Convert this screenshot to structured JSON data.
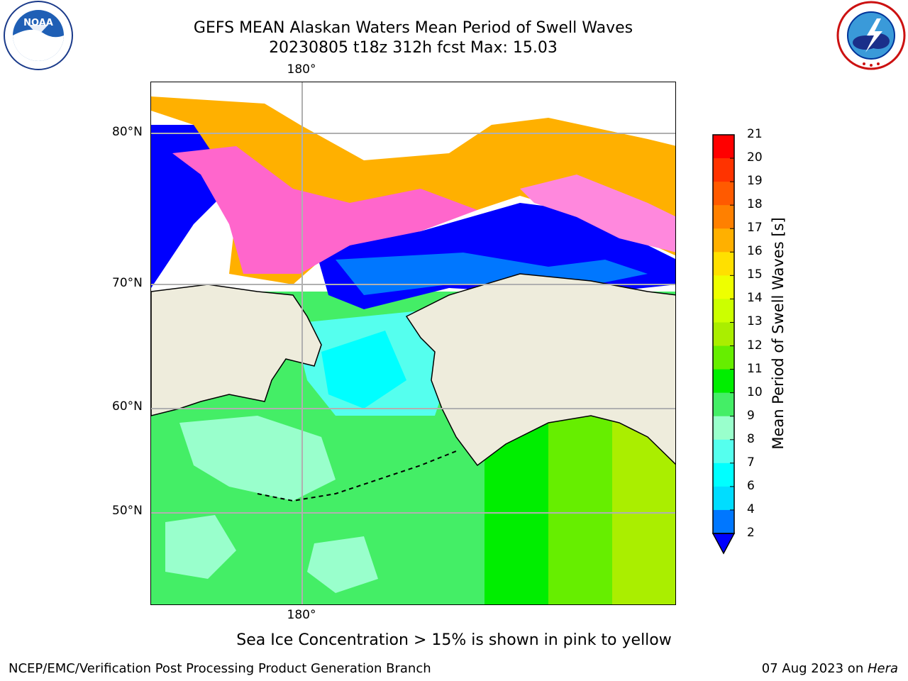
{
  "title": {
    "line1": "GEFS MEAN Alaskan Waters Mean Period of Swell Waves",
    "line2": "20230805 t18z 312h fcst   Max: 15.03"
  },
  "logos": {
    "left": "noaa-logo",
    "right": "nws-logo"
  },
  "map": {
    "type": "filled-contour",
    "variable": "Mean Period of Swell Waves",
    "region": "Alaskan Waters",
    "lat_labels": [
      "80°N",
      "70°N",
      "60°N",
      "50°N"
    ],
    "lon_label_top": "180°",
    "lon_label_bottom": "180°",
    "grid": true,
    "land_color": "#eeecdc",
    "ice_overlay": "pink to yellow"
  },
  "colorbar": {
    "label": "Mean Period of Swell Waves [s]",
    "ticks": [
      "21",
      "20",
      "19",
      "18",
      "17",
      "16",
      "15",
      "14",
      "13",
      "12",
      "11",
      "10",
      "9",
      "8",
      "7",
      "6",
      "4",
      "2"
    ],
    "bins": [
      {
        "from": 20,
        "to": 21,
        "color": "#ff0000"
      },
      {
        "from": 19,
        "to": 20,
        "color": "#ff3300"
      },
      {
        "from": 18,
        "to": 19,
        "color": "#ff5a00"
      },
      {
        "from": 17,
        "to": 18,
        "color": "#ff8000"
      },
      {
        "from": 16,
        "to": 17,
        "color": "#ffb000"
      },
      {
        "from": 15,
        "to": 16,
        "color": "#ffe000"
      },
      {
        "from": 14,
        "to": 15,
        "color": "#eeff00"
      },
      {
        "from": 13,
        "to": 14,
        "color": "#ccff00"
      },
      {
        "from": 12,
        "to": 13,
        "color": "#aaee00"
      },
      {
        "from": 11,
        "to": 12,
        "color": "#66ee00"
      },
      {
        "from": 10,
        "to": 11,
        "color": "#00ee00"
      },
      {
        "from": 9,
        "to": 10,
        "color": "#44ee66"
      },
      {
        "from": 8,
        "to": 9,
        "color": "#99ffcc"
      },
      {
        "from": 7,
        "to": 8,
        "color": "#55ffee"
      },
      {
        "from": 6,
        "to": 7,
        "color": "#00ffff"
      },
      {
        "from": 4,
        "to": 6,
        "color": "#00ddff"
      },
      {
        "from": 2,
        "to": 4,
        "color": "#0077ff"
      }
    ],
    "under_color": "#0000ff"
  },
  "caption": "Sea Ice Concentration > 15% is shown in pink to yellow",
  "footer": {
    "left": "NCEP/EMC/Verification Post Processing Product Generation Branch",
    "right_prefix": "07 Aug 2023 on ",
    "right_host": "Hera"
  }
}
